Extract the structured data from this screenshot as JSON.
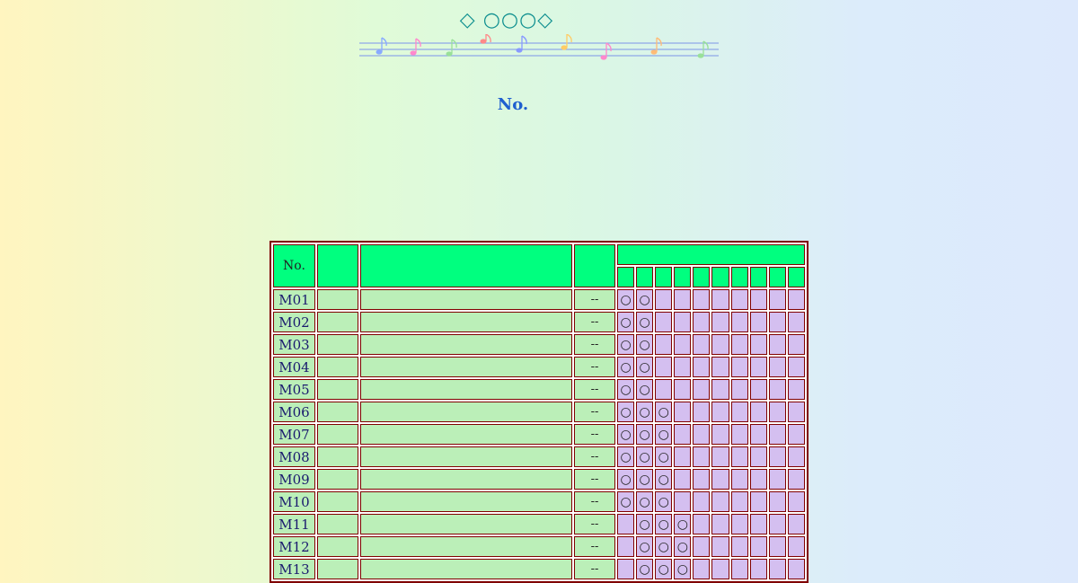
{
  "title": "◇ ○○○◇",
  "heading": "No.",
  "staff_colors": [
    "#88aaff",
    "#ff88cc",
    "#99e099",
    "#ff8888",
    "#8899ff",
    "#ffcc66",
    "#ff88cc",
    "#ffbb77",
    "#99e099"
  ],
  "table": {
    "header_no": "No.",
    "header_col2": "",
    "header_col3": "",
    "header_col4": "",
    "header_group": "",
    "sub_headers": [
      "",
      "",
      "",
      "",
      "",
      "",
      "",
      "",
      "",
      ""
    ],
    "rows": [
      {
        "id": "M01",
        "c2": "",
        "c3": "",
        "c4": "--",
        "marks": [
          "○",
          "○",
          "",
          "",
          "",
          "",
          "",
          "",
          "",
          ""
        ]
      },
      {
        "id": "M02",
        "c2": "",
        "c3": "",
        "c4": "--",
        "marks": [
          "○",
          "○",
          "",
          "",
          "",
          "",
          "",
          "",
          "",
          ""
        ]
      },
      {
        "id": "M03",
        "c2": "",
        "c3": "",
        "c4": "--",
        "marks": [
          "○",
          "○",
          "",
          "",
          "",
          "",
          "",
          "",
          "",
          ""
        ]
      },
      {
        "id": "M04",
        "c2": "",
        "c3": "",
        "c4": "--",
        "marks": [
          "○",
          "○",
          "",
          "",
          "",
          "",
          "",
          "",
          "",
          ""
        ]
      },
      {
        "id": "M05",
        "c2": "",
        "c3": "",
        "c4": "--",
        "marks": [
          "○",
          "○",
          "",
          "",
          "",
          "",
          "",
          "",
          "",
          ""
        ]
      },
      {
        "id": "M06",
        "c2": "",
        "c3": "",
        "c4": "--",
        "marks": [
          "○",
          "○",
          "○",
          "",
          "",
          "",
          "",
          "",
          "",
          ""
        ]
      },
      {
        "id": "M07",
        "c2": "",
        "c3": "",
        "c4": "--",
        "marks": [
          "○",
          "○",
          "○",
          "",
          "",
          "",
          "",
          "",
          "",
          ""
        ]
      },
      {
        "id": "M08",
        "c2": "",
        "c3": "",
        "c4": "--",
        "marks": [
          "○",
          "○",
          "○",
          "",
          "",
          "",
          "",
          "",
          "",
          ""
        ]
      },
      {
        "id": "M09",
        "c2": "",
        "c3": "",
        "c4": "--",
        "marks": [
          "○",
          "○",
          "○",
          "",
          "",
          "",
          "",
          "",
          "",
          ""
        ]
      },
      {
        "id": "M10",
        "c2": "",
        "c3": "",
        "c4": "--",
        "marks": [
          "○",
          "○",
          "○",
          "",
          "",
          "",
          "",
          "",
          "",
          ""
        ]
      },
      {
        "id": "M11",
        "c2": "",
        "c3": "",
        "c4": "--",
        "marks": [
          "",
          "○",
          "○",
          "○",
          "",
          "",
          "",
          "",
          "",
          ""
        ]
      },
      {
        "id": "M12",
        "c2": "",
        "c3": "",
        "c4": "--",
        "marks": [
          "",
          "○",
          "○",
          "○",
          "",
          "",
          "",
          "",
          "",
          ""
        ]
      },
      {
        "id": "M13",
        "c2": "",
        "c3": "",
        "c4": "--",
        "marks": [
          "",
          "○",
          "○",
          "○",
          "",
          "",
          "",
          "",
          "",
          ""
        ]
      }
    ]
  }
}
